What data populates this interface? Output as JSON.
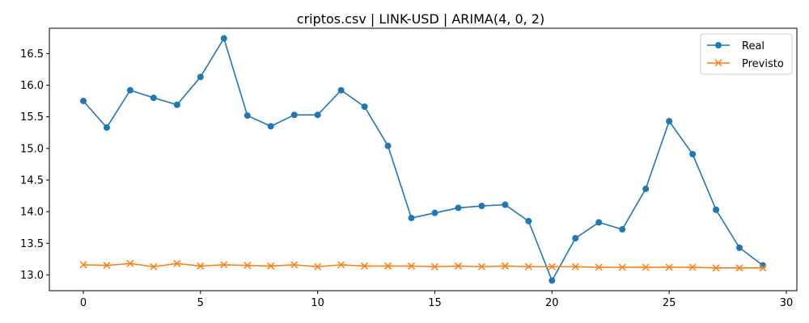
{
  "chart_data": {
    "type": "line",
    "title": "criptos.csv | LINK-USD | ARIMA(4, 0, 2)",
    "xlabel": "",
    "ylabel": "",
    "xlim": [
      -1.45,
      30.45
    ],
    "ylim": [
      12.75,
      16.9
    ],
    "x_ticks": [
      0,
      5,
      10,
      15,
      20,
      25,
      30
    ],
    "y_ticks": [
      13.0,
      13.5,
      14.0,
      14.5,
      15.0,
      15.5,
      16.0,
      16.5
    ],
    "grid": false,
    "legend_position": "top-right",
    "x": [
      0,
      1,
      2,
      3,
      4,
      5,
      6,
      7,
      8,
      9,
      10,
      11,
      12,
      13,
      14,
      15,
      16,
      17,
      18,
      19,
      20,
      21,
      22,
      23,
      24,
      25,
      26,
      27,
      28,
      29
    ],
    "series": [
      {
        "name": "Real",
        "color": "#1f77b4",
        "marker": "circle",
        "values": [
          15.75,
          15.33,
          15.92,
          15.8,
          15.69,
          16.13,
          16.74,
          15.52,
          15.35,
          15.53,
          15.53,
          15.92,
          15.66,
          15.04,
          13.9,
          13.98,
          14.06,
          14.09,
          14.11,
          13.85,
          12.91,
          13.58,
          13.83,
          13.72,
          14.36,
          15.43,
          14.91,
          14.03,
          13.43,
          13.15
        ]
      },
      {
        "name": "Previsto",
        "color": "#ff7f0e",
        "marker": "x",
        "values": [
          13.16,
          13.15,
          13.18,
          13.13,
          13.18,
          13.14,
          13.16,
          13.15,
          13.14,
          13.16,
          13.13,
          13.16,
          13.14,
          13.14,
          13.14,
          13.13,
          13.14,
          13.13,
          13.14,
          13.13,
          13.13,
          13.13,
          13.12,
          13.12,
          13.12,
          13.12,
          13.12,
          13.11,
          13.11,
          13.11
        ]
      }
    ]
  }
}
